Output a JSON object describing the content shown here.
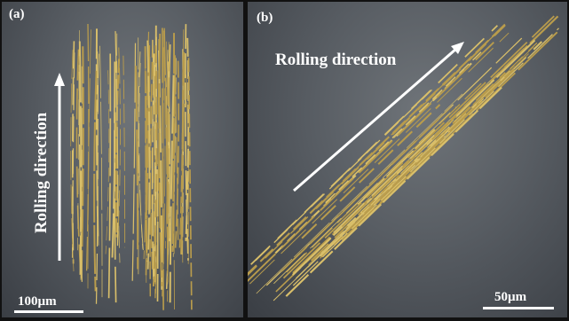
{
  "figure": {
    "panel_a": {
      "label": "(a)",
      "direction_text": "Rolling direction",
      "scale_text": "100µm"
    },
    "panel_b": {
      "label": "(b)",
      "direction_text": "Rolling direction",
      "scale_text": "50µm"
    },
    "colors": {
      "fiber": "#d9bf6a",
      "fiber_dark": "#b99c4c",
      "background": "#5c6166",
      "annotation": "#ffffff"
    }
  }
}
